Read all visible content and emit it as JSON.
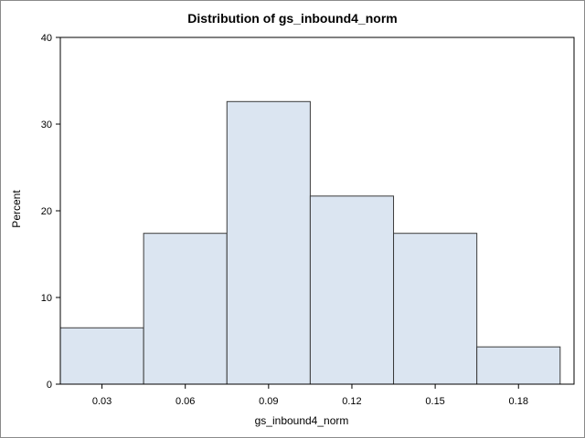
{
  "chart_data": {
    "type": "bar",
    "title": "Distribution of gs_inbound4_norm",
    "xlabel": "gs_inbound4_norm",
    "ylabel": "Percent",
    "categories": [
      "0.03",
      "0.06",
      "0.09",
      "0.12",
      "0.15",
      "0.18"
    ],
    "values": [
      6.5,
      17.4,
      32.6,
      21.7,
      17.4,
      4.3
    ],
    "xlim": [
      0.015,
      0.2
    ],
    "ylim": [
      0,
      40
    ],
    "yticks": [
      0,
      10,
      20,
      30,
      40
    ],
    "grid": false,
    "bar_color": "#dbe5f1",
    "bar_edge_color": "#3a3a3a"
  }
}
